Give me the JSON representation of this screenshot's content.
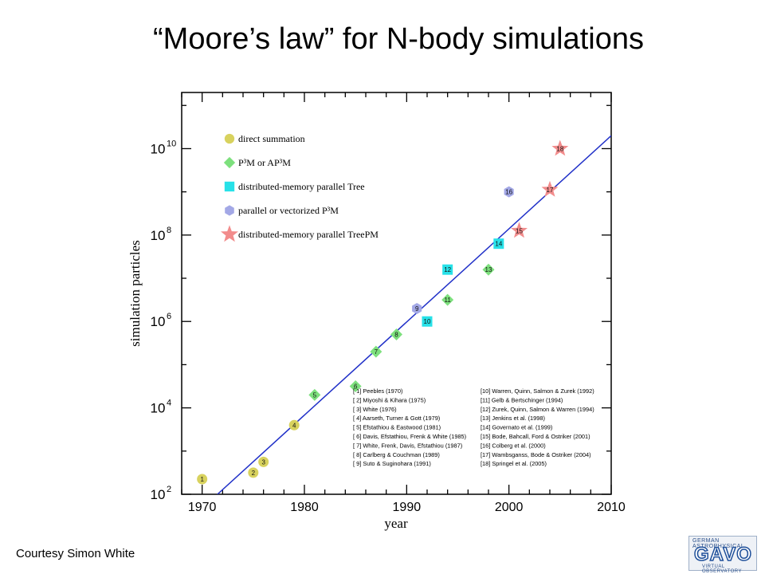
{
  "slide": {
    "title": "“Moore’s law” for N-body simulations",
    "credit": "Courtesy Simon White",
    "logo": {
      "top_text": "GERMAN ASTROPHYSICAL",
      "main_text": "GAVO",
      "bottom_text": "VIRTUAL OBSERVATORY"
    }
  },
  "chart_data": {
    "type": "scatter",
    "title": "",
    "xlabel": "year",
    "ylabel": "simulation particles",
    "xlim": [
      1968,
      2010
    ],
    "ylim": [
      2,
      11.3
    ],
    "y_log_scale": true,
    "x_ticks": [
      "1970",
      "1980",
      "1990",
      "2000",
      "2010"
    ],
    "y_ticks": [
      {
        "base": "10",
        "exp": "2"
      },
      {
        "base": "10",
        "exp": "4"
      },
      {
        "base": "10",
        "exp": "6"
      },
      {
        "base": "10",
        "exp": "8"
      },
      {
        "base": "10",
        "exp": "10"
      }
    ],
    "legend_position": "top-left",
    "categories": [
      {
        "key": "ds",
        "label": "direct summation",
        "marker": "circle",
        "color": "#d8d25e"
      },
      {
        "key": "p3m",
        "label": "P³M or AP³M",
        "marker": "diamond",
        "color": "#7de07d"
      },
      {
        "key": "tree",
        "label": "distributed-memory parallel Tree",
        "marker": "square",
        "color": "#27e1e8"
      },
      {
        "key": "vec",
        "label": "parallel or vectorized P³M",
        "marker": "hexagon",
        "color": "#a3a8e6"
      },
      {
        "key": "treepm",
        "label": "distributed-memory parallel TreePM",
        "marker": "star",
        "color": "#f28c8c"
      }
    ],
    "points": [
      {
        "n": "1",
        "cat": "ds",
        "year": 1970,
        "log10N": 2.35
      },
      {
        "n": "2",
        "cat": "ds",
        "year": 1975,
        "log10N": 2.5
      },
      {
        "n": "3",
        "cat": "ds",
        "year": 1976,
        "log10N": 2.75
      },
      {
        "n": "4",
        "cat": "ds",
        "year": 1979,
        "log10N": 3.6
      },
      {
        "n": "5",
        "cat": "p3m",
        "year": 1981,
        "log10N": 4.3
      },
      {
        "n": "6",
        "cat": "p3m",
        "year": 1985,
        "log10N": 4.5
      },
      {
        "n": "7",
        "cat": "p3m",
        "year": 1987,
        "log10N": 5.3
      },
      {
        "n": "8",
        "cat": "p3m",
        "year": 1989,
        "log10N": 5.7
      },
      {
        "n": "9",
        "cat": "vec",
        "year": 1991,
        "log10N": 6.3
      },
      {
        "n": "10",
        "cat": "tree",
        "year": 1992,
        "log10N": 6.0
      },
      {
        "n": "11",
        "cat": "p3m",
        "year": 1994,
        "log10N": 6.5
      },
      {
        "n": "12",
        "cat": "tree",
        "year": 1994,
        "log10N": 7.2
      },
      {
        "n": "13",
        "cat": "p3m",
        "year": 1998,
        "log10N": 7.2
      },
      {
        "n": "14",
        "cat": "tree",
        "year": 1999,
        "log10N": 7.8
      },
      {
        "n": "15",
        "cat": "treepm",
        "year": 2001,
        "log10N": 8.1
      },
      {
        "n": "16",
        "cat": "vec",
        "year": 2000,
        "log10N": 9.0
      },
      {
        "n": "17",
        "cat": "treepm",
        "year": 2004,
        "log10N": 9.05
      },
      {
        "n": "18",
        "cat": "treepm",
        "year": 2005,
        "log10N": 10.0
      }
    ],
    "trend_line": {
      "x": [
        1971.5,
        2010
      ],
      "log10N": [
        2.0,
        10.3
      ],
      "color": "#2030c8"
    },
    "references_left": [
      "[ 1] Peebles (1970)",
      "[ 2] Miyoshi & Kihara (1975)",
      "[ 3] White (1976)",
      "[ 4] Aarseth, Turner & Gott (1979)",
      "[ 5] Efstathiou & Eastwood (1981)",
      "[ 6] Davis, Efstathiou, Frenk & White (1985)",
      "[ 7] White, Frenk, Davis, Efstathiou (1987)",
      "[ 8] Carlberg & Couchman (1989)",
      "[ 9] Suto & Suginohara (1991)"
    ],
    "references_right": [
      "[10] Warren, Quinn, Salmon & Zurek (1992)",
      "[11] Gelb & Bertschinger (1994)",
      "[12] Zurek, Quinn, Salmon & Warren (1994)",
      "[13] Jenkins et al. (1998)",
      "[14] Governato et al. (1999)",
      "[15] Bode, Bahcall, Ford & Ostriker (2001)",
      "[16] Colberg et al. (2000)",
      "[17] Wambsganss, Bode & Ostriker (2004)",
      "[18] Springel et al. (2005)"
    ]
  }
}
